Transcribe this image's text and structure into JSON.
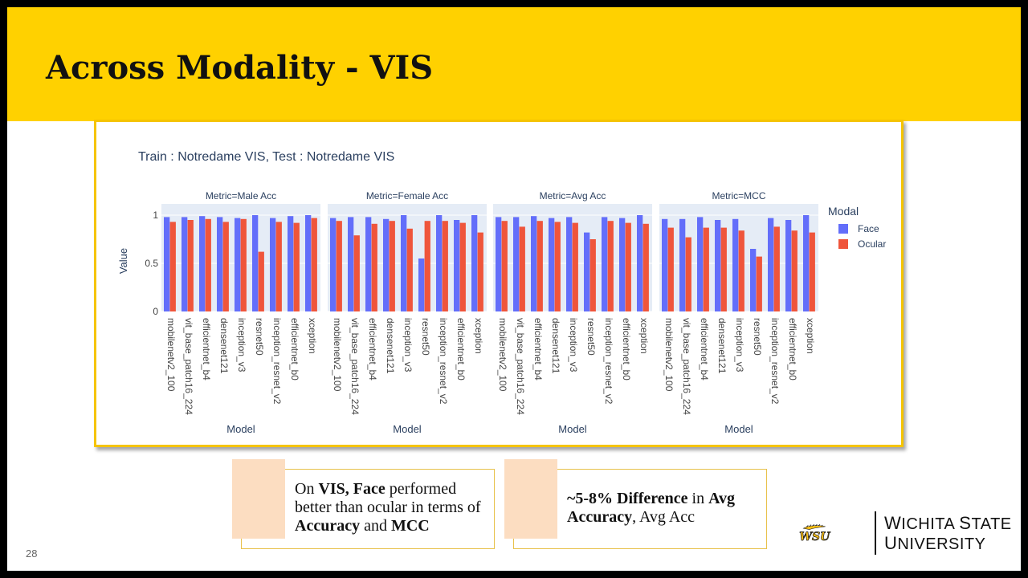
{
  "slide": {
    "title": "Across Modality - VIS",
    "page_number": "28"
  },
  "chart_data": {
    "type": "bar",
    "title": "Train : Notredame VIS, Test : Notredame VIS",
    "ylabel": "Value",
    "xlabel": "Model",
    "ylim": [
      0,
      1.05
    ],
    "yticks": [
      0,
      0.5,
      1
    ],
    "legend": {
      "title": "Modal",
      "placement": "right"
    },
    "categories": [
      "mobilenetv2_100",
      "vit_base_patch16_224",
      "efficientnet_b4",
      "densenet121",
      "inception_v3",
      "resnet50",
      "inception_resnet_v2",
      "efficientnet_b0",
      "xception"
    ],
    "series_colors": {
      "Face": "#636EFA",
      "Ocular": "#EF553B"
    },
    "panels": [
      {
        "title": "Metric=Male Acc",
        "series": [
          {
            "name": "Face",
            "values": [
              0.98,
              0.98,
              0.99,
              0.98,
              0.97,
              1.0,
              0.97,
              0.99,
              1.0
            ]
          },
          {
            "name": "Ocular",
            "values": [
              0.93,
              0.95,
              0.96,
              0.93,
              0.96,
              0.62,
              0.93,
              0.92,
              0.97
            ]
          }
        ]
      },
      {
        "title": "Metric=Female Acc",
        "series": [
          {
            "name": "Face",
            "values": [
              0.97,
              0.98,
              0.98,
              0.96,
              1.0,
              0.55,
              1.0,
              0.95,
              1.0
            ]
          },
          {
            "name": "Ocular",
            "values": [
              0.94,
              0.79,
              0.91,
              0.94,
              0.86,
              0.94,
              0.94,
              0.92,
              0.82
            ]
          }
        ]
      },
      {
        "title": "Metric=Avg Acc",
        "series": [
          {
            "name": "Face",
            "values": [
              0.98,
              0.98,
              0.99,
              0.97,
              0.98,
              0.82,
              0.98,
              0.97,
              1.0
            ]
          },
          {
            "name": "Ocular",
            "values": [
              0.94,
              0.88,
              0.94,
              0.93,
              0.92,
              0.75,
              0.94,
              0.92,
              0.91
            ]
          }
        ]
      },
      {
        "title": "Metric=MCC",
        "series": [
          {
            "name": "Face",
            "values": [
              0.96,
              0.96,
              0.98,
              0.95,
              0.96,
              0.65,
              0.97,
              0.95,
              1.0
            ]
          },
          {
            "name": "Ocular",
            "values": [
              0.87,
              0.77,
              0.87,
              0.87,
              0.84,
              0.57,
              0.88,
              0.84,
              0.82
            ]
          }
        ]
      }
    ]
  },
  "callouts": [
    {
      "parts": [
        {
          "text": "On ",
          "bold": false
        },
        {
          "text": "VIS, Face",
          "bold": true
        },
        {
          "text": " performed better than ocular in terms of  ",
          "bold": false
        },
        {
          "text": "Accuracy",
          "bold": true
        },
        {
          "text": " and ",
          "bold": false
        },
        {
          "text": "MCC",
          "bold": true
        }
      ]
    },
    {
      "parts": [
        {
          "text": "~5-8% Difference",
          "bold": true
        },
        {
          "text": " in ",
          "bold": false
        },
        {
          "text": "Avg Accuracy",
          "bold": true
        },
        {
          "text": ", Avg Acc",
          "bold": false
        }
      ]
    }
  ],
  "logo": {
    "monogram": "WSU",
    "line1_first": "W",
    "line1_rest": "ICHITA ",
    "line1_first2": "S",
    "line1_rest2": "TATE",
    "line2_first": "U",
    "line2_rest": "NIVERSITY",
    "colors": {
      "gold": "#FFC217",
      "black": "#111111"
    }
  }
}
